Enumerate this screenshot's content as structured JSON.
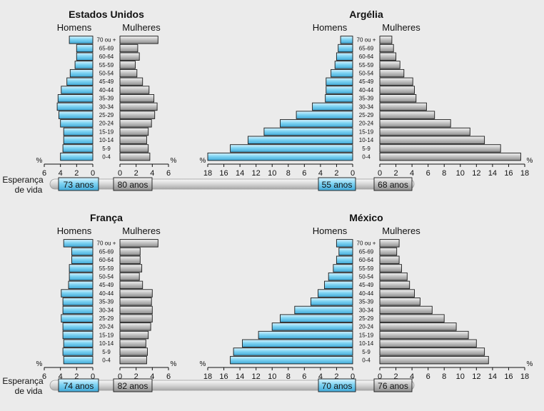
{
  "chart_data": {
    "type": "bar",
    "subtype": "population-pyramid",
    "row_label": "Esperança de vida",
    "percent_symbol": "%",
    "age_groups": [
      "0-4",
      "5-9",
      "10-14",
      "15-19",
      "20-24",
      "25-29",
      "30-34",
      "35-39",
      "40-44",
      "45-49",
      "50-54",
      "55-59",
      "60-64",
      "65-69",
      "70 ou +"
    ],
    "left_label": "Homens",
    "right_label": "Mulheres",
    "panels": [
      {
        "title": "Estados Unidos",
        "xlim": [
          0,
          6
        ],
        "ticks": [
          6,
          4,
          2,
          0
        ],
        "men": [
          4.0,
          3.7,
          3.6,
          3.6,
          4.0,
          4.2,
          4.4,
          4.3,
          3.9,
          3.2,
          2.8,
          2.2,
          2.0,
          2.0,
          2.9
        ],
        "women": [
          3.7,
          3.5,
          3.3,
          3.5,
          3.9,
          4.3,
          4.6,
          4.2,
          3.6,
          2.8,
          2.1,
          1.9,
          2.4,
          2.2,
          4.7
        ],
        "life_men": "73 anos",
        "life_women": "80 anos"
      },
      {
        "title": "Argélia",
        "xlim": [
          0,
          18
        ],
        "ticks": [
          18,
          16,
          14,
          12,
          10,
          8,
          6,
          4,
          2,
          0
        ],
        "men": [
          18.0,
          15.2,
          13.0,
          11.0,
          9.0,
          7.0,
          5.0,
          3.4,
          3.3,
          3.3,
          2.7,
          2.2,
          2.0,
          1.8,
          1.5
        ],
        "women": [
          17.5,
          15.0,
          13.0,
          11.2,
          8.8,
          6.8,
          5.8,
          4.5,
          4.3,
          4.1,
          3.0,
          2.5,
          2.0,
          1.7,
          1.5
        ],
        "life_men": "55 anos",
        "life_women": "68 anos"
      },
      {
        "title": "França",
        "xlim": [
          0,
          6
        ],
        "ticks": [
          6,
          4,
          2,
          0
        ],
        "men": [
          3.6,
          3.7,
          3.6,
          3.7,
          3.7,
          3.9,
          3.7,
          3.7,
          3.9,
          3.0,
          2.9,
          2.9,
          2.6,
          2.6,
          3.6
        ],
        "women": [
          3.3,
          3.4,
          3.2,
          3.5,
          3.8,
          4.0,
          4.0,
          3.9,
          4.0,
          2.8,
          2.4,
          2.7,
          2.5,
          2.5,
          4.7
        ],
        "life_men": "74 anos",
        "life_women": "82 anos"
      },
      {
        "title": "México",
        "xlim": [
          0,
          18
        ],
        "ticks": [
          18,
          16,
          14,
          12,
          10,
          8,
          6,
          4,
          2,
          0
        ],
        "men": [
          15.2,
          14.8,
          13.7,
          11.7,
          10.0,
          9.0,
          7.2,
          5.2,
          4.3,
          3.5,
          3.0,
          2.4,
          2.0,
          1.7,
          2.0
        ],
        "women": [
          13.5,
          13.0,
          12.0,
          11.0,
          9.5,
          8.0,
          6.5,
          5.0,
          4.3,
          3.7,
          3.4,
          2.7,
          2.4,
          2.1,
          2.4
        ],
        "life_men": "70 anos",
        "life_women": "76 anos"
      }
    ]
  },
  "colors": {
    "men": "#7fd4f3",
    "women": "#c4c4c4",
    "edge": "#1a1a1a",
    "bg": "#ebebeb"
  }
}
